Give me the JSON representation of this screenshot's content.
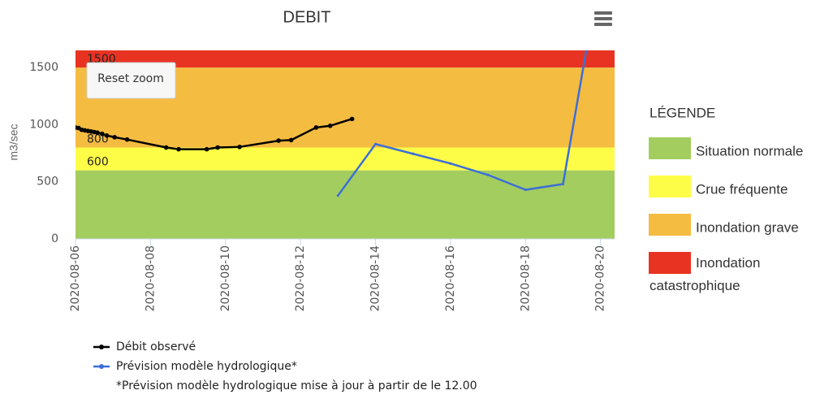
{
  "chart_data": {
    "type": "line",
    "title": "DEBIT",
    "y_label": "m3/sec",
    "xlim": [
      1596672000000,
      1597914000000
    ],
    "xticks": [
      {
        "value": 1596672000000,
        "label": "2020-08-06"
      },
      {
        "value": 1596844800000,
        "label": "2020-08-08"
      },
      {
        "value": 1597017600000,
        "label": "2020-08-10"
      },
      {
        "value": 1597190400000,
        "label": "2020-08-12"
      },
      {
        "value": 1597363200000,
        "label": "2020-08-14"
      },
      {
        "value": 1597536000000,
        "label": "2020-08-16"
      },
      {
        "value": 1597708800000,
        "label": "2020-08-18"
      },
      {
        "value": 1597881600000,
        "label": "2020-08-20"
      }
    ],
    "ylim": [
      0,
      1650
    ],
    "yticks": [
      0,
      500,
      1000,
      1500
    ],
    "bands": [
      {
        "from": 0,
        "color": "#a3cd5f",
        "name": "Situation normale"
      },
      {
        "from": 600,
        "color": "#fdfd47",
        "name": "Crue fréquente"
      },
      {
        "from": 800,
        "color": "#f5bc42",
        "name": "Inondation grave"
      },
      {
        "from": 1500,
        "color": "#e83323",
        "name": "Inondation catastrophique"
      }
    ],
    "band_legend_title": "LÉGENDE",
    "series": [
      {
        "name": "Débit observé",
        "color": "#000000",
        "x": [
          1596672000000,
          1596679200000,
          1596686400000,
          1596693600000,
          1596700800000,
          1596708000000,
          1596715200000,
          1596722400000,
          1596733200000,
          1596744000000,
          1596762000000,
          1596790800000,
          1596880800000,
          1596909600000,
          1596974400000,
          1596999600000,
          1597050000000,
          1597140000000,
          1597168800000,
          1597226400000,
          1597258800000,
          1597309200000
        ],
        "values": [
          975,
          970,
          955,
          950,
          945,
          940,
          935,
          930,
          920,
          905,
          890,
          870,
          800,
          785,
          785,
          800,
          805,
          860,
          865,
          975,
          990,
          1050
        ]
      },
      {
        "name": "Prévision modèle hydrologique*",
        "color": "#3c6fd8",
        "x": [
          1597276800000,
          1597363200000,
          1597449600000,
          1597536000000,
          1597622400000,
          1597708800000,
          1597795200000,
          1597849200000
        ],
        "values": [
          380,
          830,
          745,
          660,
          560,
          430,
          480,
          1660
        ]
      }
    ],
    "note": "*Prévision modèle hydrologique mise à jour à partir de le 12.00",
    "reset_button": "Reset zoom"
  }
}
